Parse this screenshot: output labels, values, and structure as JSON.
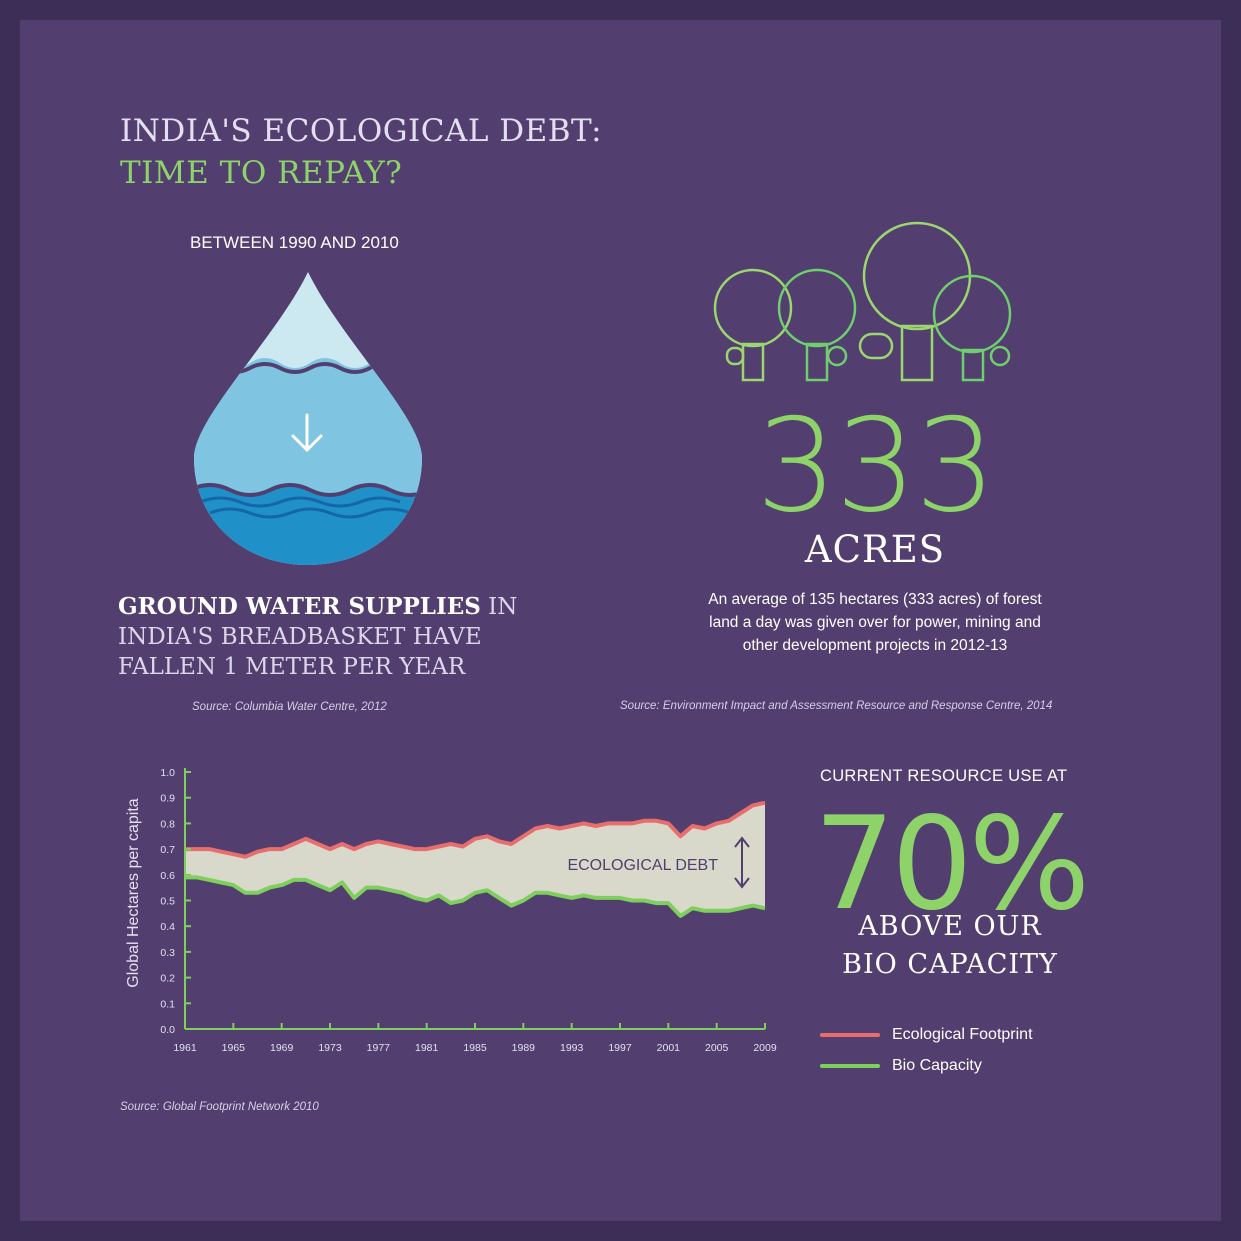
{
  "title": {
    "line1": "INDIA'S ECOLOGICAL DEBT:",
    "line2": "TIME TO REPAY?"
  },
  "water": {
    "period": "BETWEEN 1990 AND 2010",
    "bold": "GROUND WATER SUPPLIES",
    "rest1": " IN",
    "line2": "INDIA'S BREADBASKET HAVE",
    "line3": "FALLEN 1 METER PER YEAR",
    "source": "Source: Columbia Water Centre, 2012",
    "icon": "water-drop-icon"
  },
  "forest": {
    "number": "333",
    "unit": "ACRES",
    "desc_line1": "An average of 135 hectares (333 acres) of forest",
    "desc_line2": "land a day was given over for power, mining and",
    "desc_line3": "other development projects in 2012-13",
    "source": "Source: Environment Impact and Assessment Resource and Response Centre, 2014",
    "icon": "trees-icon"
  },
  "resource": {
    "heading": "CURRENT RESOURCE USE AT",
    "number": "70%",
    "line1": "ABOVE OUR",
    "line2": "BIO CAPACITY"
  },
  "colors": {
    "footprint": "#e86e6e",
    "biocapacity": "#7fcf5c",
    "fill": "#d9d9cb",
    "accent": "#8ed26a"
  },
  "chart_data": {
    "type": "area",
    "ylabel": "Global Hectares per capita",
    "ylim": [
      0,
      1.0
    ],
    "yticks": [
      "0.0",
      "0.1",
      "0.2",
      "0.3",
      "0.4",
      "0.5",
      "0.6",
      "0.7",
      "0.8",
      "0.9",
      "1.0"
    ],
    "xlim": [
      1961,
      2009
    ],
    "xticks": [
      "1961",
      "1965",
      "1969",
      "1973",
      "1977",
      "1981",
      "1985",
      "1989",
      "1993",
      "1997",
      "2001",
      "2005",
      "2009"
    ],
    "x": [
      1961,
      1962,
      1963,
      1964,
      1965,
      1966,
      1967,
      1968,
      1969,
      1970,
      1971,
      1972,
      1973,
      1974,
      1975,
      1976,
      1977,
      1978,
      1979,
      1980,
      1981,
      1982,
      1983,
      1984,
      1985,
      1986,
      1987,
      1988,
      1989,
      1990,
      1991,
      1992,
      1993,
      1994,
      1995,
      1996,
      1997,
      1998,
      1999,
      2000,
      2001,
      2002,
      2003,
      2004,
      2005,
      2006,
      2007,
      2008,
      2009
    ],
    "series": [
      {
        "name": "Ecological Footprint",
        "values": [
          0.7,
          0.7,
          0.7,
          0.69,
          0.68,
          0.67,
          0.69,
          0.7,
          0.7,
          0.72,
          0.74,
          0.72,
          0.7,
          0.72,
          0.7,
          0.72,
          0.73,
          0.72,
          0.71,
          0.7,
          0.7,
          0.71,
          0.72,
          0.71,
          0.74,
          0.75,
          0.73,
          0.72,
          0.75,
          0.78,
          0.79,
          0.78,
          0.79,
          0.8,
          0.79,
          0.8,
          0.8,
          0.8,
          0.81,
          0.81,
          0.8,
          0.75,
          0.79,
          0.78,
          0.8,
          0.81,
          0.84,
          0.87,
          0.88
        ]
      },
      {
        "name": "Bio Capacity",
        "values": [
          0.59,
          0.59,
          0.58,
          0.57,
          0.56,
          0.53,
          0.53,
          0.55,
          0.56,
          0.58,
          0.58,
          0.56,
          0.54,
          0.57,
          0.51,
          0.55,
          0.55,
          0.54,
          0.53,
          0.51,
          0.5,
          0.52,
          0.49,
          0.5,
          0.53,
          0.54,
          0.51,
          0.48,
          0.5,
          0.53,
          0.53,
          0.52,
          0.51,
          0.52,
          0.51,
          0.51,
          0.51,
          0.5,
          0.5,
          0.49,
          0.49,
          0.44,
          0.47,
          0.46,
          0.46,
          0.46,
          0.47,
          0.48,
          0.47
        ]
      }
    ],
    "annotation": "ECOLOGICAL DEBT",
    "legend_placement": "bottom-right",
    "grid": false,
    "source": "Source: Global Footprint Network 2010"
  }
}
